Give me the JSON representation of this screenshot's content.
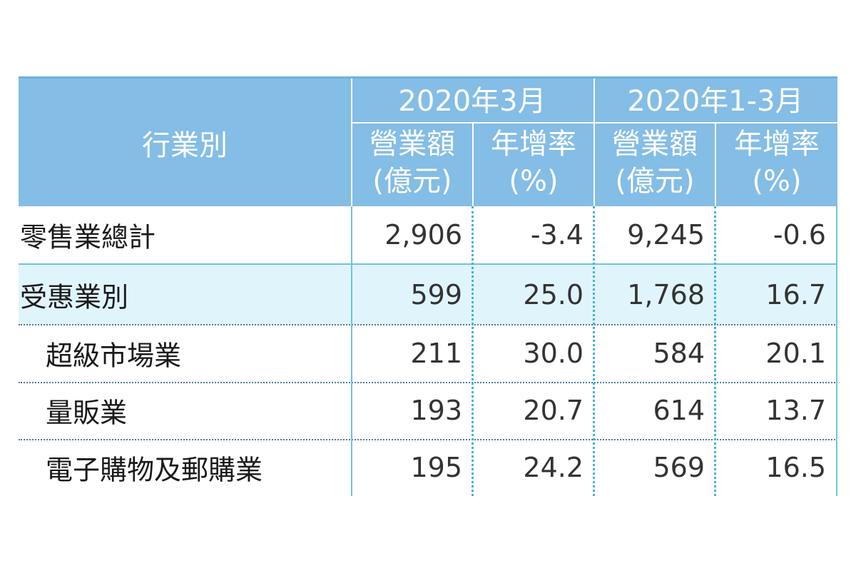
{
  "header": {
    "industry_label": "行業別",
    "period_march": "2020年3月",
    "period_q1": "2020年1-3月",
    "col_revenue_line1": "營業額",
    "col_revenue_line2": "(億元)",
    "col_growth_line1": "年增率",
    "col_growth_line2": "(%)"
  },
  "rows": [
    {
      "label": "零售業總計",
      "mar_revenue": "2,906",
      "mar_growth": "-3.4",
      "q1_revenue": "9,245",
      "q1_growth": "-0.6"
    },
    {
      "label": "受惠業別",
      "mar_revenue": "599",
      "mar_growth": "25.0",
      "q1_revenue": "1,768",
      "q1_growth": "16.7"
    },
    {
      "label": "超級市場業",
      "mar_revenue": "211",
      "mar_growth": "30.0",
      "q1_revenue": "584",
      "q1_growth": "20.1"
    },
    {
      "label": "量販業",
      "mar_revenue": "193",
      "mar_growth": "20.7",
      "q1_revenue": "614",
      "q1_growth": "13.7"
    },
    {
      "label": "電子購物及郵購業",
      "mar_revenue": "195",
      "mar_growth": "24.2",
      "q1_revenue": "569",
      "q1_growth": "16.5"
    }
  ],
  "colors": {
    "header_bg": "#84bde5",
    "highlight_row_bg": "#e0f5fb",
    "border": "#6fc2df"
  }
}
